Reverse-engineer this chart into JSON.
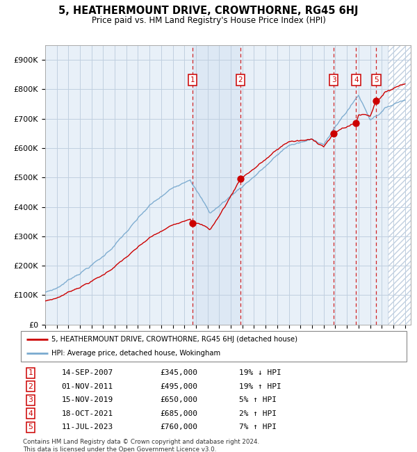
{
  "title": "5, HEATHERMOUNT DRIVE, CROWTHORNE, RG45 6HJ",
  "subtitle": "Price paid vs. HM Land Registry's House Price Index (HPI)",
  "xlim_start": 1995.0,
  "xlim_end": 2026.5,
  "ylim": [
    0,
    950000
  ],
  "yticks": [
    0,
    100000,
    200000,
    300000,
    400000,
    500000,
    600000,
    700000,
    800000,
    900000
  ],
  "ytick_labels": [
    "£0",
    "£100K",
    "£200K",
    "£300K",
    "£400K",
    "£500K",
    "£600K",
    "£700K",
    "£800K",
    "£900K"
  ],
  "sales": [
    {
      "num": 1,
      "date_x": 2007.71,
      "price": 345000,
      "label": "1"
    },
    {
      "num": 2,
      "date_x": 2011.83,
      "price": 495000,
      "label": "2"
    },
    {
      "num": 3,
      "date_x": 2019.87,
      "price": 650000,
      "label": "3"
    },
    {
      "num": 4,
      "date_x": 2021.79,
      "price": 685000,
      "label": "4"
    },
    {
      "num": 5,
      "date_x": 2023.53,
      "price": 760000,
      "label": "5"
    }
  ],
  "sale_info": [
    {
      "num": 1,
      "date": "14-SEP-2007",
      "price": "£345,000",
      "pct": "19%",
      "dir": "↓",
      "rel": "HPI"
    },
    {
      "num": 2,
      "date": "01-NOV-2011",
      "price": "£495,000",
      "pct": "19%",
      "dir": "↑",
      "rel": "HPI"
    },
    {
      "num": 3,
      "date": "15-NOV-2019",
      "price": "£650,000",
      "pct": "5%",
      "dir": "↑",
      "rel": "HPI"
    },
    {
      "num": 4,
      "date": "18-OCT-2021",
      "price": "£685,000",
      "pct": "2%",
      "dir": "↑",
      "rel": "HPI"
    },
    {
      "num": 5,
      "date": "11-JUL-2023",
      "price": "£760,000",
      "pct": "7%",
      "dir": "↑",
      "rel": "HPI"
    }
  ],
  "shade_between_sales": [
    0,
    1
  ],
  "legend_line1": "5, HEATHERMOUNT DRIVE, CROWTHORNE, RG45 6HJ (detached house)",
  "legend_line2": "HPI: Average price, detached house, Wokingham",
  "footer": "Contains HM Land Registry data © Crown copyright and database right 2024.\nThis data is licensed under the Open Government Licence v3.0.",
  "hpi_color": "#7aaacf",
  "sale_color": "#cc0000",
  "bg_color": "#e8f0f8",
  "grid_color": "#c0cfe0",
  "shade_color": "#dce8f4",
  "future_start": 2024.5
}
